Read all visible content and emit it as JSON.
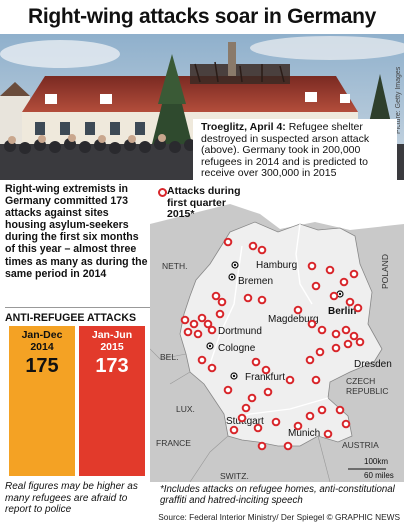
{
  "title": "Right-wing attacks soar in Germany",
  "callout": {
    "place_date": "Troeglitz, April 4:",
    "text": " Refugee shelter destroyed in suspected arson attack (above). Germany took in 200,000 refugees in 2014 and is predicted to receive over 300,000 in 2015"
  },
  "intro": "Right-wing extremists in Germany committed 173 attacks against sites housing asylum-seekers during the first six months of this year – almost three times as many as during the same period in 2014",
  "bars": {
    "title": "ANTI-REFUGEE ATTACKS",
    "items": [
      {
        "period": "Jan-Dec 2014",
        "value": 175
      },
      {
        "period": "Jan-Jun 2015",
        "value": 173
      }
    ]
  },
  "map": {
    "legend": "Attacks during first quarter 2015*",
    "countries": [
      "NETH.",
      "BEL.",
      "LUX.",
      "FRANCE",
      "SWITZ.",
      "AUSTRIA",
      "CZECH REPUBLIC",
      "POLAND"
    ],
    "cities": [
      "Hamburg",
      "Bremen",
      "Berlin",
      "Magdeburg",
      "Dortmund",
      "Cologne",
      "Frankfurt",
      "Dresden",
      "Stuttgart",
      "Munich"
    ],
    "scale_km": "100km",
    "scale_miles": "60 miles"
  },
  "photo_credit": "Picture: Getty Images",
  "footnote_left": "Real figures may be higher as many refugees are afraid to report to police",
  "footnote_right": "*Includes attacks on refugee homes, anti-constitutional graffiti and hatred-inciting speech",
  "source": "Source: Federal Interior Ministry/ Der Spiegel © GRAPHIC NEWS",
  "colors": {
    "bar_2014": "#f4a224",
    "bar_2015": "#e23a2b",
    "dot": "#d8262b",
    "map_land": "#c8c8c8",
    "map_germany": "#e9e9e9",
    "map_water": "#ffffff"
  }
}
